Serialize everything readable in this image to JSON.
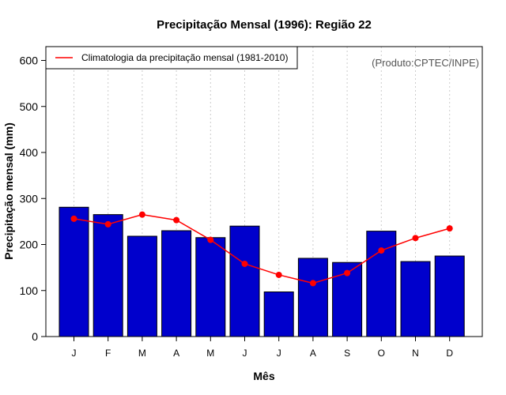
{
  "chart_data": {
    "type": "bar",
    "title": "Precipitação Mensal (1996): Região 22",
    "xlabel": "Mês",
    "ylabel": "Precipitação mensal (mm)",
    "ylim": [
      0,
      620
    ],
    "yticks": [
      0,
      100,
      200,
      300,
      400,
      500,
      600
    ],
    "categories": [
      "J",
      "F",
      "M",
      "A",
      "M",
      "J",
      "J",
      "A",
      "S",
      "O",
      "N",
      "D"
    ],
    "grid": "vertical dotted",
    "series": [
      {
        "name": "Precipitação mensal (1996)",
        "type": "bar",
        "color": "#0000cc",
        "values": [
          281,
          265,
          218,
          230,
          215,
          240,
          97,
          170,
          161,
          229,
          163,
          175
        ]
      },
      {
        "name": "Climatologia da precipitação mensal (1981-2010)",
        "type": "line",
        "color": "#ff0000",
        "values": [
          256,
          244,
          265,
          253,
          210,
          158,
          134,
          116,
          138,
          187,
          214,
          235
        ]
      }
    ],
    "legend": {
      "position": "top-left",
      "label": "Climatologia da precipitação mensal (1981-2010)"
    },
    "annotation": "(Produto:CPTEC/INPE)"
  }
}
